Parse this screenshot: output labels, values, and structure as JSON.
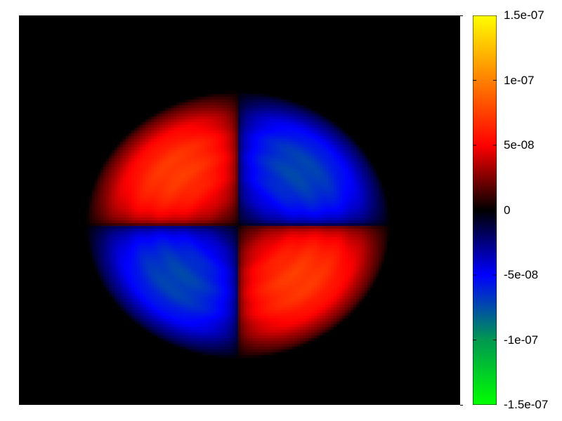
{
  "chart_data": {
    "type": "heatmap",
    "title": "",
    "xlabel": "",
    "ylabel": "",
    "colorbar": {
      "range": [
        -1.5e-07,
        1.5e-07
      ],
      "ticks": [
        {
          "value": 1.5e-07,
          "label": "1.5e-07"
        },
        {
          "value": 1e-07,
          "label": "1e-07"
        },
        {
          "value": 5e-08,
          "label": "5e-08"
        },
        {
          "value": 0,
          "label": "0"
        },
        {
          "value": -5e-08,
          "label": "-5e-08"
        },
        {
          "value": -1e-07,
          "label": "-1e-07"
        },
        {
          "value": -1.5e-07,
          "label": "-1.5e-07"
        }
      ],
      "palette": [
        {
          "value": -1.5e-07,
          "color": "#00ff00"
        },
        {
          "value": -1e-07,
          "color": "#009950"
        },
        {
          "value": -5e-08,
          "color": "#0000ff"
        },
        {
          "value": 0,
          "color": "#000000"
        },
        {
          "value": 5e-08,
          "color": "#ff0000"
        },
        {
          "value": 1e-07,
          "color": "#ff8000"
        },
        {
          "value": 1.5e-07,
          "color": "#ffff00"
        }
      ]
    },
    "field": {
      "shape": "disk",
      "pattern": "quadrupole",
      "peak_value": 9.5e-08,
      "quadrants": {
        "upper-left": "positive",
        "upper-right": "negative",
        "lower-left": "negative",
        "lower-right": "positive"
      }
    }
  }
}
